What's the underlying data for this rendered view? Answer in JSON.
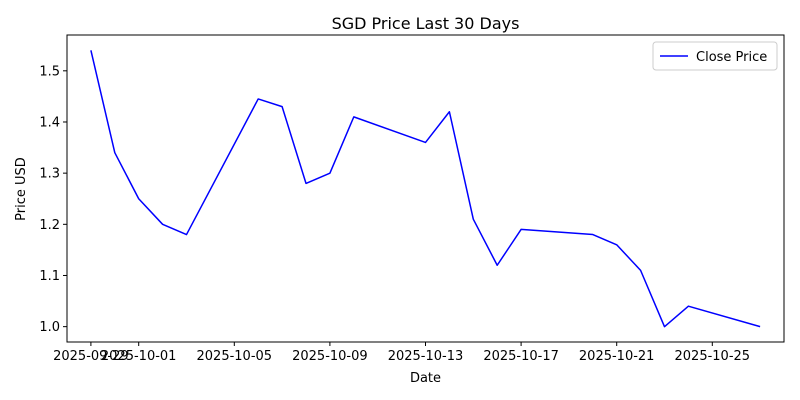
{
  "chart_data": {
    "type": "line",
    "title": "SGD Price Last 30 Days",
    "xlabel": "Date",
    "ylabel": "Price USD",
    "x_tick_labels": [
      "2025-09-29",
      "2025-10-01",
      "2025-10-05",
      "2025-10-09",
      "2025-10-13",
      "2025-10-17",
      "2025-10-21",
      "2025-10-25"
    ],
    "y_tick_labels": [
      "1.0",
      "1.1",
      "1.2",
      "1.3",
      "1.4",
      "1.5"
    ],
    "y_ticks": [
      1.0,
      1.1,
      1.2,
      1.3,
      1.4,
      1.5
    ],
    "xlim": [
      "2025-09-28",
      "2025-10-28"
    ],
    "ylim": [
      0.97,
      1.57
    ],
    "grid": false,
    "legend_position": "top-right",
    "series": [
      {
        "name": "Close Price",
        "color": "#0000ff",
        "points": [
          {
            "x": "2025-09-29",
            "y": 1.54
          },
          {
            "x": "2025-09-30",
            "y": 1.34
          },
          {
            "x": "2025-10-01",
            "y": 1.25
          },
          {
            "x": "2025-10-02",
            "y": 1.2
          },
          {
            "x": "2025-10-03",
            "y": 1.18
          },
          {
            "x": "2025-10-06",
            "y": 1.445
          },
          {
            "x": "2025-10-07",
            "y": 1.43
          },
          {
            "x": "2025-10-08",
            "y": 1.28
          },
          {
            "x": "2025-10-09",
            "y": 1.3
          },
          {
            "x": "2025-10-10",
            "y": 1.41
          },
          {
            "x": "2025-10-13",
            "y": 1.36
          },
          {
            "x": "2025-10-14",
            "y": 1.42
          },
          {
            "x": "2025-10-15",
            "y": 1.21
          },
          {
            "x": "2025-10-16",
            "y": 1.12
          },
          {
            "x": "2025-10-17",
            "y": 1.19
          },
          {
            "x": "2025-10-20",
            "y": 1.18
          },
          {
            "x": "2025-10-21",
            "y": 1.16
          },
          {
            "x": "2025-10-22",
            "y": 1.11
          },
          {
            "x": "2025-10-23",
            "y": 1.0
          },
          {
            "x": "2025-10-24",
            "y": 1.04
          },
          {
            "x": "2025-10-27",
            "y": 1.0
          }
        ]
      }
    ]
  }
}
